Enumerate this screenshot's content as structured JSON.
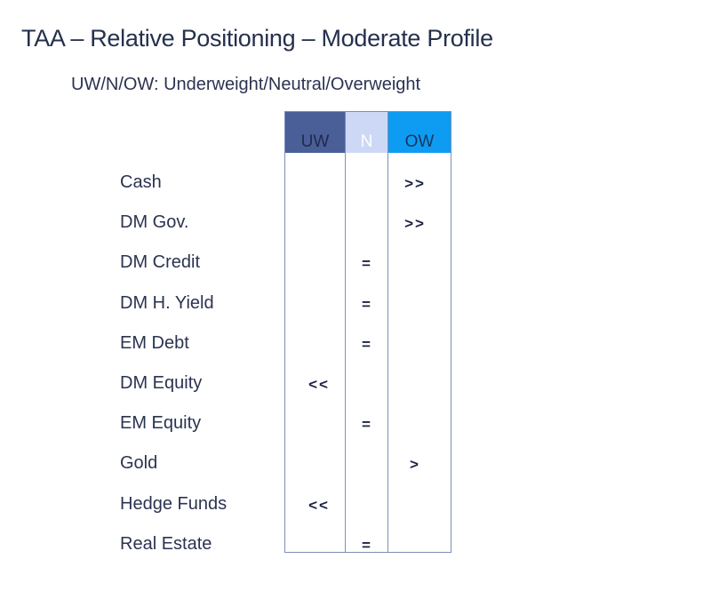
{
  "header": {
    "title": "TAA – Relative Positioning – Moderate Profile",
    "subtitle": "UW/N/OW: Underweight/Neutral/Overweight"
  },
  "columns": [
    {
      "key": "UW",
      "label": "UW",
      "color": "#4a5f98"
    },
    {
      "key": "N",
      "label": "N",
      "color": "#ccd8f5"
    },
    {
      "key": "OW",
      "label": "OW",
      "color": "#0e9cf2"
    }
  ],
  "rows": [
    {
      "label": "Cash",
      "column": "OW",
      "mark": ">>"
    },
    {
      "label": "DM Gov.",
      "column": "OW",
      "mark": ">>"
    },
    {
      "label": "DM Credit",
      "column": "N",
      "mark": "="
    },
    {
      "label": "DM H. Yield",
      "column": "N",
      "mark": "="
    },
    {
      "label": "EM Debt",
      "column": "N",
      "mark": "="
    },
    {
      "label": "DM Equity",
      "column": "UW",
      "mark": "<<"
    },
    {
      "label": "EM Equity",
      "column": "N",
      "mark": "="
    },
    {
      "label": "Gold",
      "column": "OW",
      "mark": ">"
    },
    {
      "label": "Hedge Funds",
      "column": "UW",
      "mark": "<<"
    },
    {
      "label": "Real Estate",
      "column": "N",
      "mark": "="
    }
  ]
}
